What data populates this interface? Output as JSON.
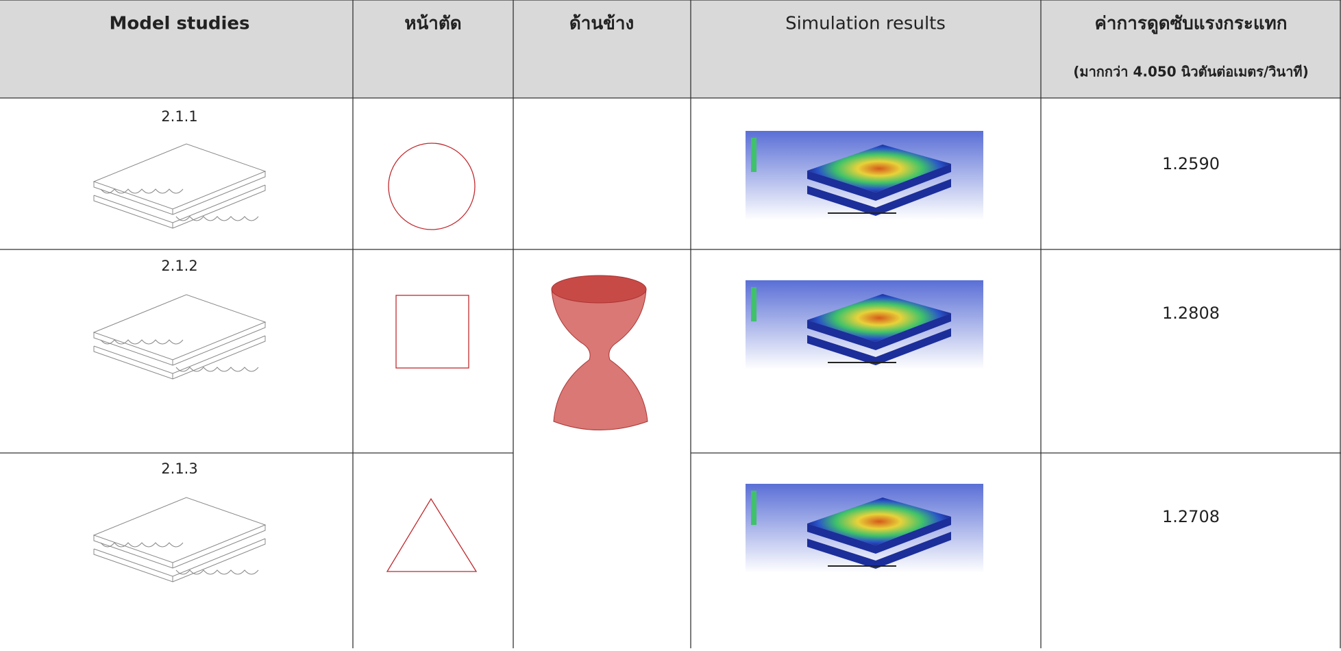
{
  "header": {
    "columns": [
      "Model studies",
      "หน้าตัด",
      "ด้านข้าง",
      "Simulation results",
      "ค่าการดูดซับแรงกระแทก"
    ],
    "note": "(มากกว่า 4.050 นิวตันต่อเมตร/วินาที)"
  },
  "table": {
    "rows": [
      [
        "2.1.1",
        "1.2590"
      ],
      [
        "2.1.2",
        "1.2808"
      ],
      [
        "2.1.3",
        "1.2708"
      ]
    ]
  }
}
